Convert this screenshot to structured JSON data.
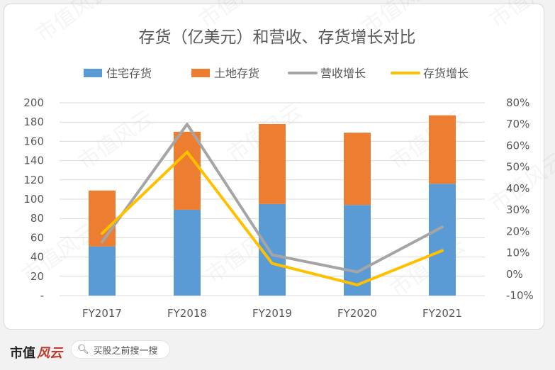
{
  "chart_data": {
    "type": "bar+line",
    "title": "存货（亿美元）和营收、存货增长对比",
    "categories": [
      "FY2017",
      "FY2018",
      "FY2019",
      "FY2020",
      "FY2021"
    ],
    "bar_series": [
      {
        "name": "住宅存货",
        "values": [
          51,
          89,
          95,
          94,
          116
        ],
        "color": "#5b9bd5"
      },
      {
        "name": "土地存货",
        "values": [
          58,
          81,
          83,
          75,
          71
        ],
        "color": "#ed7d31"
      }
    ],
    "line_series": [
      {
        "name": "营收增长",
        "values": [
          0.15,
          0.7,
          0.09,
          0.01,
          0.22
        ],
        "color": "#a5a5a5"
      },
      {
        "name": "存货增长",
        "values": [
          0.19,
          0.57,
          0.05,
          -0.05,
          0.11
        ],
        "color": "#ffc000"
      }
    ],
    "y_left": {
      "min": 0,
      "max": 200,
      "step": 20,
      "ticks": [
        "200",
        "180",
        "160",
        "140",
        "120",
        "100",
        "80",
        "60",
        "40",
        "20",
        "-"
      ]
    },
    "y_right": {
      "min": -0.1,
      "max": 0.8,
      "step": 0.1,
      "ticks": [
        "80%",
        "70%",
        "60%",
        "50%",
        "40%",
        "30%",
        "20%",
        "10%",
        "0%",
        "-10%"
      ]
    },
    "legend_position": "top",
    "grid": true
  },
  "footer": {
    "logo_main": "市值",
    "logo_brand": "风云",
    "search_text": "买股之前搜一搜",
    "search_icon": "search-icon"
  },
  "watermark_text": "市值风云"
}
